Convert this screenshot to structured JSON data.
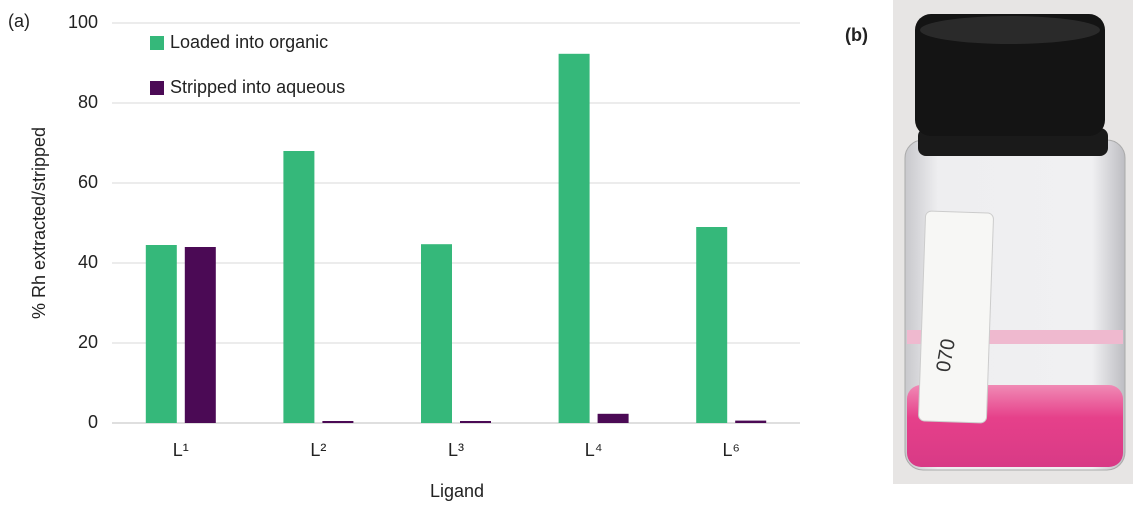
{
  "chart_data": {
    "type": "bar",
    "panel_label": "(a)",
    "xlabel": "Ligand",
    "ylabel": "% Rh extracted/stripped",
    "categories": [
      "L¹",
      "L²",
      "L³",
      "L⁴",
      "L⁶"
    ],
    "series": [
      {
        "name": "Loaded into organic",
        "color": "#35b87a",
        "values": [
          44.5,
          68,
          44.7,
          92.3,
          49
        ]
      },
      {
        "name": "Stripped into aqueous",
        "color": "#4b0a55",
        "values": [
          44,
          0.5,
          0.5,
          2.3,
          0.6
        ]
      }
    ],
    "ylim": [
      0,
      100
    ],
    "yticks": [
      0,
      20,
      40,
      60,
      80,
      100
    ],
    "grid": true,
    "legend": "upper left"
  },
  "photo": {
    "panel_label": "(b)",
    "label_text": "070"
  }
}
